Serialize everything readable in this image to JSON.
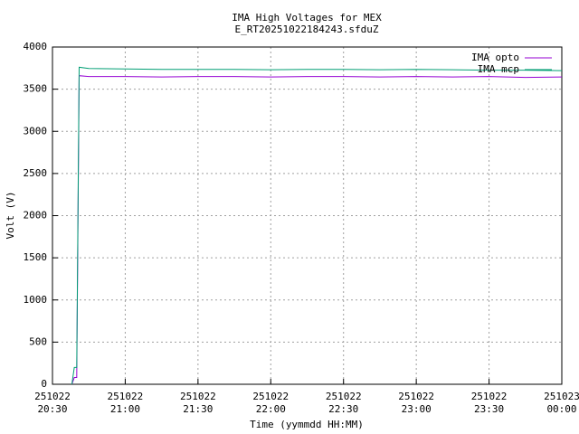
{
  "chart_data": {
    "type": "line",
    "title": "IMA High Voltages for MEX",
    "subtitle": "E_RT20251022184243.sfduZ",
    "xlabel": "Time (yymmdd HH:MM)",
    "ylabel": "Volt (V)",
    "x": [
      "251022 20:38",
      "251022 20:39",
      "251022 20:40",
      "251022 20:41",
      "251022 20:45",
      "251022 21:00",
      "251022 21:15",
      "251022 21:30",
      "251022 21:45",
      "251022 22:00",
      "251022 22:15",
      "251022 22:30",
      "251022 22:45",
      "251022 23:00",
      "251022 23:15",
      "251022 23:30",
      "251022 23:45",
      "251023 00:00"
    ],
    "series": [
      {
        "name": "IMA opto",
        "color": "#9400d3",
        "values": [
          0,
          80,
          80,
          3660,
          3650,
          3650,
          3645,
          3650,
          3650,
          3645,
          3650,
          3650,
          3645,
          3650,
          3645,
          3650,
          3640,
          3645
        ]
      },
      {
        "name": "IMA mcp",
        "color": "#009e73",
        "values": [
          0,
          200,
          200,
          3760,
          3745,
          3740,
          3735,
          3735,
          3735,
          3730,
          3735,
          3735,
          3730,
          3735,
          3730,
          3725,
          3725,
          3720
        ]
      }
    ],
    "xlim": [
      "251022 20:30",
      "251023 00:00"
    ],
    "xticks": [
      {
        "value": "251022 20:30",
        "label": [
          "251022",
          "20:30"
        ]
      },
      {
        "value": "251022 21:00",
        "label": [
          "251022",
          "21:00"
        ]
      },
      {
        "value": "251022 21:30",
        "label": [
          "251022",
          "21:30"
        ]
      },
      {
        "value": "251022 22:00",
        "label": [
          "251022",
          "22:00"
        ]
      },
      {
        "value": "251022 22:30",
        "label": [
          "251022",
          "22:30"
        ]
      },
      {
        "value": "251022 23:00",
        "label": [
          "251022",
          "23:00"
        ]
      },
      {
        "value": "251022 23:30",
        "label": [
          "251022",
          "23:30"
        ]
      },
      {
        "value": "251023 00:00",
        "label": [
          "251023",
          "00:00"
        ]
      }
    ],
    "ylim": [
      0,
      4000
    ],
    "yticks": [
      0,
      500,
      1000,
      1500,
      2000,
      2500,
      3000,
      3500,
      4000
    ],
    "grid": true,
    "legend": "top-right"
  }
}
